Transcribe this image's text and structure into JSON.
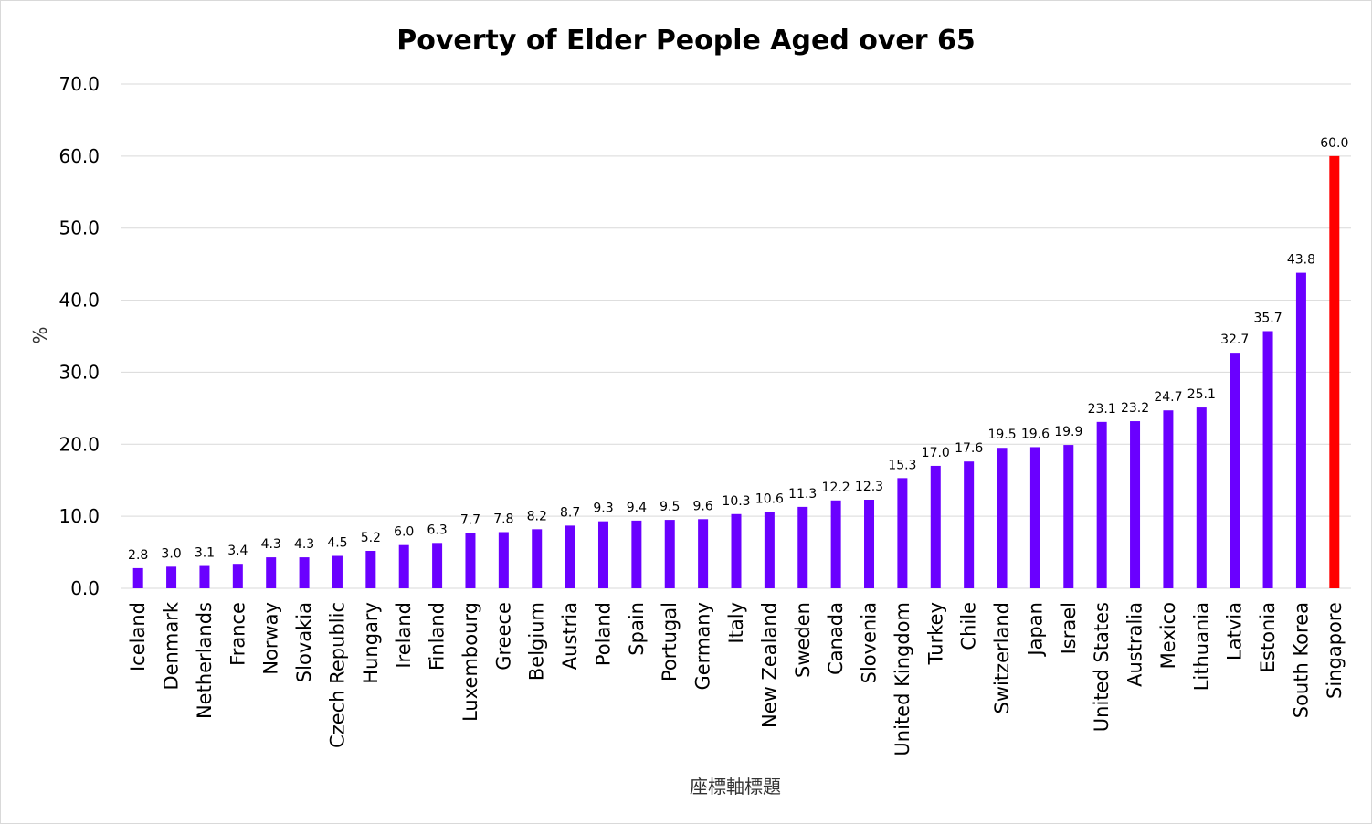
{
  "chart_data": {
    "type": "bar",
    "title": "Poverty of Elder People Aged over 65",
    "xlabel": "座標軸標題",
    "ylabel": "%",
    "ylim": [
      0,
      70
    ],
    "ytick_step": 10,
    "ytick_labels": [
      "0.0",
      "10.0",
      "20.0",
      "30.0",
      "40.0",
      "50.0",
      "60.0",
      "70.0"
    ],
    "grid": true,
    "legend": "none",
    "bar_color": "#6a00ff",
    "highlight_color": "#ff0000",
    "highlight_category": "Singapore",
    "categories": [
      "Iceland",
      "Denmark",
      "Netherlands",
      "France",
      "Norway",
      "Slovakia",
      "Czech Republic",
      "Hungary",
      "Ireland",
      "Finland",
      "Luxembourg",
      "Greece",
      "Belgium",
      "Austria",
      "Poland",
      "Spain",
      "Portugal",
      "Germany",
      "Italy",
      "New Zealand",
      "Sweden",
      "Canada",
      "Slovenia",
      "United Kingdom",
      "Turkey",
      "Chile",
      "Switzerland",
      "Japan",
      "Israel",
      "United States",
      "Australia",
      "Mexico",
      "Lithuania",
      "Latvia",
      "Estonia",
      "South Korea",
      "Singapore"
    ],
    "values": [
      2.8,
      3.0,
      3.1,
      3.4,
      4.3,
      4.3,
      4.5,
      5.2,
      6.0,
      6.3,
      7.7,
      7.8,
      8.2,
      8.7,
      9.3,
      9.4,
      9.5,
      9.6,
      10.3,
      10.6,
      11.3,
      12.2,
      12.3,
      15.3,
      17.0,
      17.6,
      19.5,
      19.6,
      19.9,
      23.1,
      23.2,
      24.7,
      25.1,
      32.7,
      35.7,
      43.8,
      60.0
    ]
  }
}
